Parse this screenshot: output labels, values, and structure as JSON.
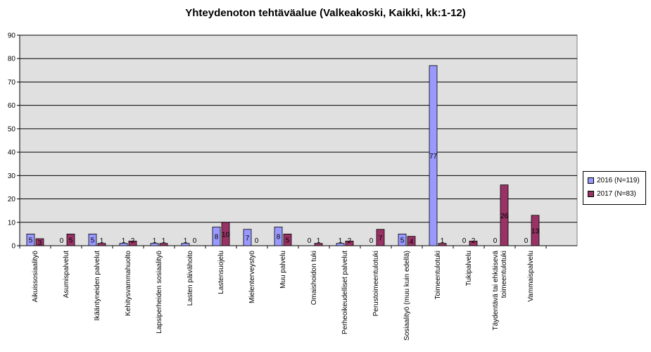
{
  "chart_data": {
    "type": "bar",
    "title": "Yhteydenoton tehtäväalue (Valkeakoski, Kaikki, kk:1-12)",
    "categories": [
      "Aikuissosiaalityö",
      "Asumispalvelut",
      "Ikääntyneiden palvelut",
      "Kehitysvammahuolto",
      "Lapsiperheiden sosiaalityö",
      "Lasten päivähoito",
      "Lastensuojelu",
      "Mielenterveystyö",
      "Muu palvelu",
      "Omaishoidon tuki",
      "Perheoikeudelliset palvelut",
      "Perustoimeentulotuki",
      "Sosiaalityö (muu kuin edellä)",
      "Toimeentulotuki",
      "Tukipalvelu",
      "Täydentävä tai ehkäisevä toimeentulotuki",
      "Vammaispalvelu"
    ],
    "series": [
      {
        "name": "2016 (N=119)",
        "color": "#9999ff",
        "values": [
          5,
          0,
          5,
          1,
          1,
          1,
          8,
          7,
          8,
          0,
          1,
          0,
          5,
          77,
          0,
          0,
          0
        ]
      },
      {
        "name": "2017 (N=83)",
        "color": "#993366",
        "values": [
          3,
          5,
          1,
          2,
          1,
          0,
          10,
          0,
          5,
          1,
          2,
          7,
          4,
          1,
          2,
          26,
          13
        ]
      }
    ],
    "ylim": [
      0,
      90
    ],
    "yticks": [
      0,
      10,
      20,
      30,
      40,
      50,
      60,
      70,
      80,
      90
    ],
    "grid": true,
    "legend_position": "right",
    "plot_background": "#e0e0e0"
  }
}
